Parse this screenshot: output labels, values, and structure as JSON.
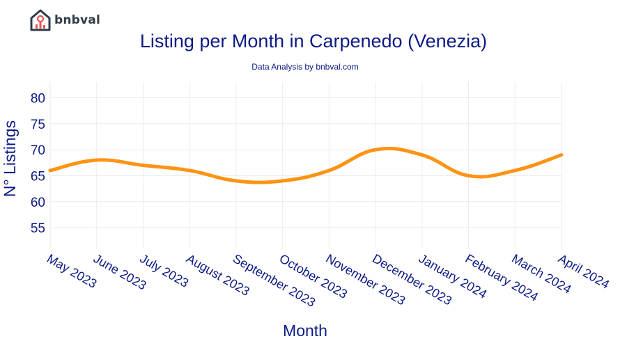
{
  "brand": {
    "name": "bnbval"
  },
  "chart_data": {
    "type": "line",
    "title": "Listing per Month in Carpenedo (Venezia)",
    "subtitle": "Data Analysis by bnbval.com",
    "xlabel": "Month",
    "ylabel": "N° Listings",
    "categories": [
      "May 2023",
      "June 2023",
      "July 2023",
      "August 2023",
      "September 2023",
      "October 2023",
      "November 2023",
      "December 2023",
      "January 2024",
      "February 2024",
      "March 2024",
      "April 2024"
    ],
    "series": [
      {
        "values": [
          66,
          68,
          67,
          66,
          64,
          64,
          66,
          70,
          69,
          65,
          66,
          69
        ]
      }
    ],
    "yticks": [
      55,
      60,
      65,
      70,
      75,
      80
    ],
    "ylim": [
      51,
      83
    ],
    "grid": true,
    "line_color": "#ff9314",
    "text_color": "#0d1a85"
  }
}
